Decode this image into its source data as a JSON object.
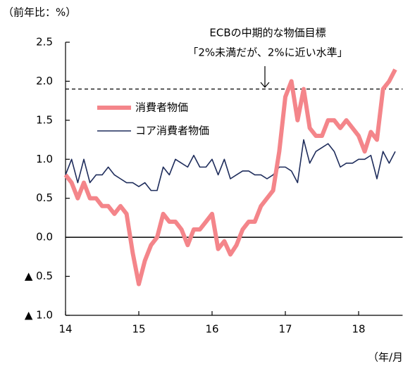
{
  "chart_data": {
    "type": "line",
    "ylabel": "（前年比：%）",
    "xlabel": "（年/月",
    "annotation": [
      "ECBの中期的な物価目標",
      "「2%未満だが、2%に近い水準」"
    ],
    "target": 1.9,
    "x": [
      14,
      14.083,
      14.167,
      14.25,
      14.333,
      14.417,
      14.5,
      14.583,
      14.667,
      14.75,
      14.833,
      14.917,
      15,
      15.083,
      15.167,
      15.25,
      15.333,
      15.417,
      15.5,
      15.583,
      15.667,
      15.75,
      15.833,
      15.917,
      16,
      16.083,
      16.167,
      16.25,
      16.333,
      16.417,
      16.5,
      16.583,
      16.667,
      16.75,
      16.833,
      16.917,
      17,
      17.083,
      17.167,
      17.25,
      17.333,
      17.417,
      17.5,
      17.583,
      17.667,
      17.75,
      17.833,
      17.917,
      18,
      18.083,
      18.167,
      18.25,
      18.333,
      18.417,
      18.5
    ],
    "series": [
      {
        "name": "消費者物価",
        "color": "#f4858a",
        "width": 6,
        "values": [
          0.8,
          0.7,
          0.5,
          0.7,
          0.5,
          0.5,
          0.4,
          0.4,
          0.3,
          0.4,
          0.3,
          -0.2,
          -0.6,
          -0.3,
          -0.1,
          0.0,
          0.3,
          0.2,
          0.2,
          0.1,
          -0.1,
          0.1,
          0.1,
          0.2,
          0.3,
          -0.15,
          -0.05,
          -0.22,
          -0.1,
          0.1,
          0.2,
          0.2,
          0.4,
          0.5,
          0.6,
          1.1,
          1.8,
          2.0,
          1.5,
          1.9,
          1.4,
          1.3,
          1.3,
          1.5,
          1.5,
          1.4,
          1.5,
          1.4,
          1.3,
          1.1,
          1.35,
          1.25,
          1.9,
          2.0,
          2.15
        ]
      },
      {
        "name": "コア消費者物価",
        "color": "#1f2d5c",
        "width": 1.6,
        "values": [
          0.8,
          1.0,
          0.7,
          1.0,
          0.7,
          0.8,
          0.8,
          0.9,
          0.8,
          0.75,
          0.7,
          0.7,
          0.65,
          0.7,
          0.6,
          0.6,
          0.9,
          0.8,
          1.0,
          0.95,
          0.9,
          1.05,
          0.9,
          0.9,
          1.0,
          0.8,
          1.0,
          0.75,
          0.8,
          0.85,
          0.85,
          0.8,
          0.8,
          0.75,
          0.8,
          0.9,
          0.9,
          0.85,
          0.7,
          1.25,
          0.95,
          1.1,
          1.15,
          1.2,
          1.1,
          0.9,
          0.95,
          0.95,
          1.0,
          1.0,
          1.05,
          0.75,
          1.1,
          0.95,
          1.1
        ]
      }
    ],
    "xlim": [
      14,
      18.6
    ],
    "xticks": [
      14,
      15,
      16,
      17,
      18
    ],
    "ylim": [
      -1.0,
      2.5
    ],
    "yticks": [
      2.5,
      {
        "value": 2.0,
        "label": "2.0"
      },
      1.5,
      {
        "value": 1.0,
        "label": "1.0"
      },
      0.5,
      {
        "value": 0,
        "label": "0.0"
      },
      {
        "value": -0.5,
        "label": "▲ 0.5"
      },
      {
        "value": -1.0,
        "label": "▲ 1.0"
      }
    ]
  }
}
